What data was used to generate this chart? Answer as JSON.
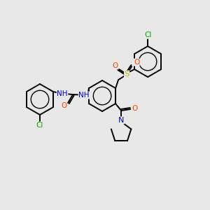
{
  "background_color": "#e8e8e8",
  "bond_color": "#000000",
  "atom_colors": {
    "N": "#0000cc",
    "O": "#ff4400",
    "S": "#bbbb00",
    "Cl": "#00aa00"
  },
  "figsize": [
    3.0,
    3.0
  ],
  "dpi": 100
}
